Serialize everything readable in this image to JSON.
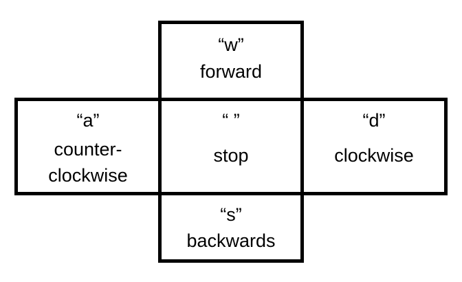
{
  "keys": {
    "w": {
      "key": "“w”",
      "action": "forward"
    },
    "a": {
      "key": "“a”",
      "action_line1": "counter-",
      "action_line2": "clockwise"
    },
    "space": {
      "key": "“ ”",
      "action": "stop"
    },
    "d": {
      "key": "“d”",
      "action": "clockwise"
    },
    "s": {
      "key": "“s”",
      "action": "backwards"
    }
  }
}
